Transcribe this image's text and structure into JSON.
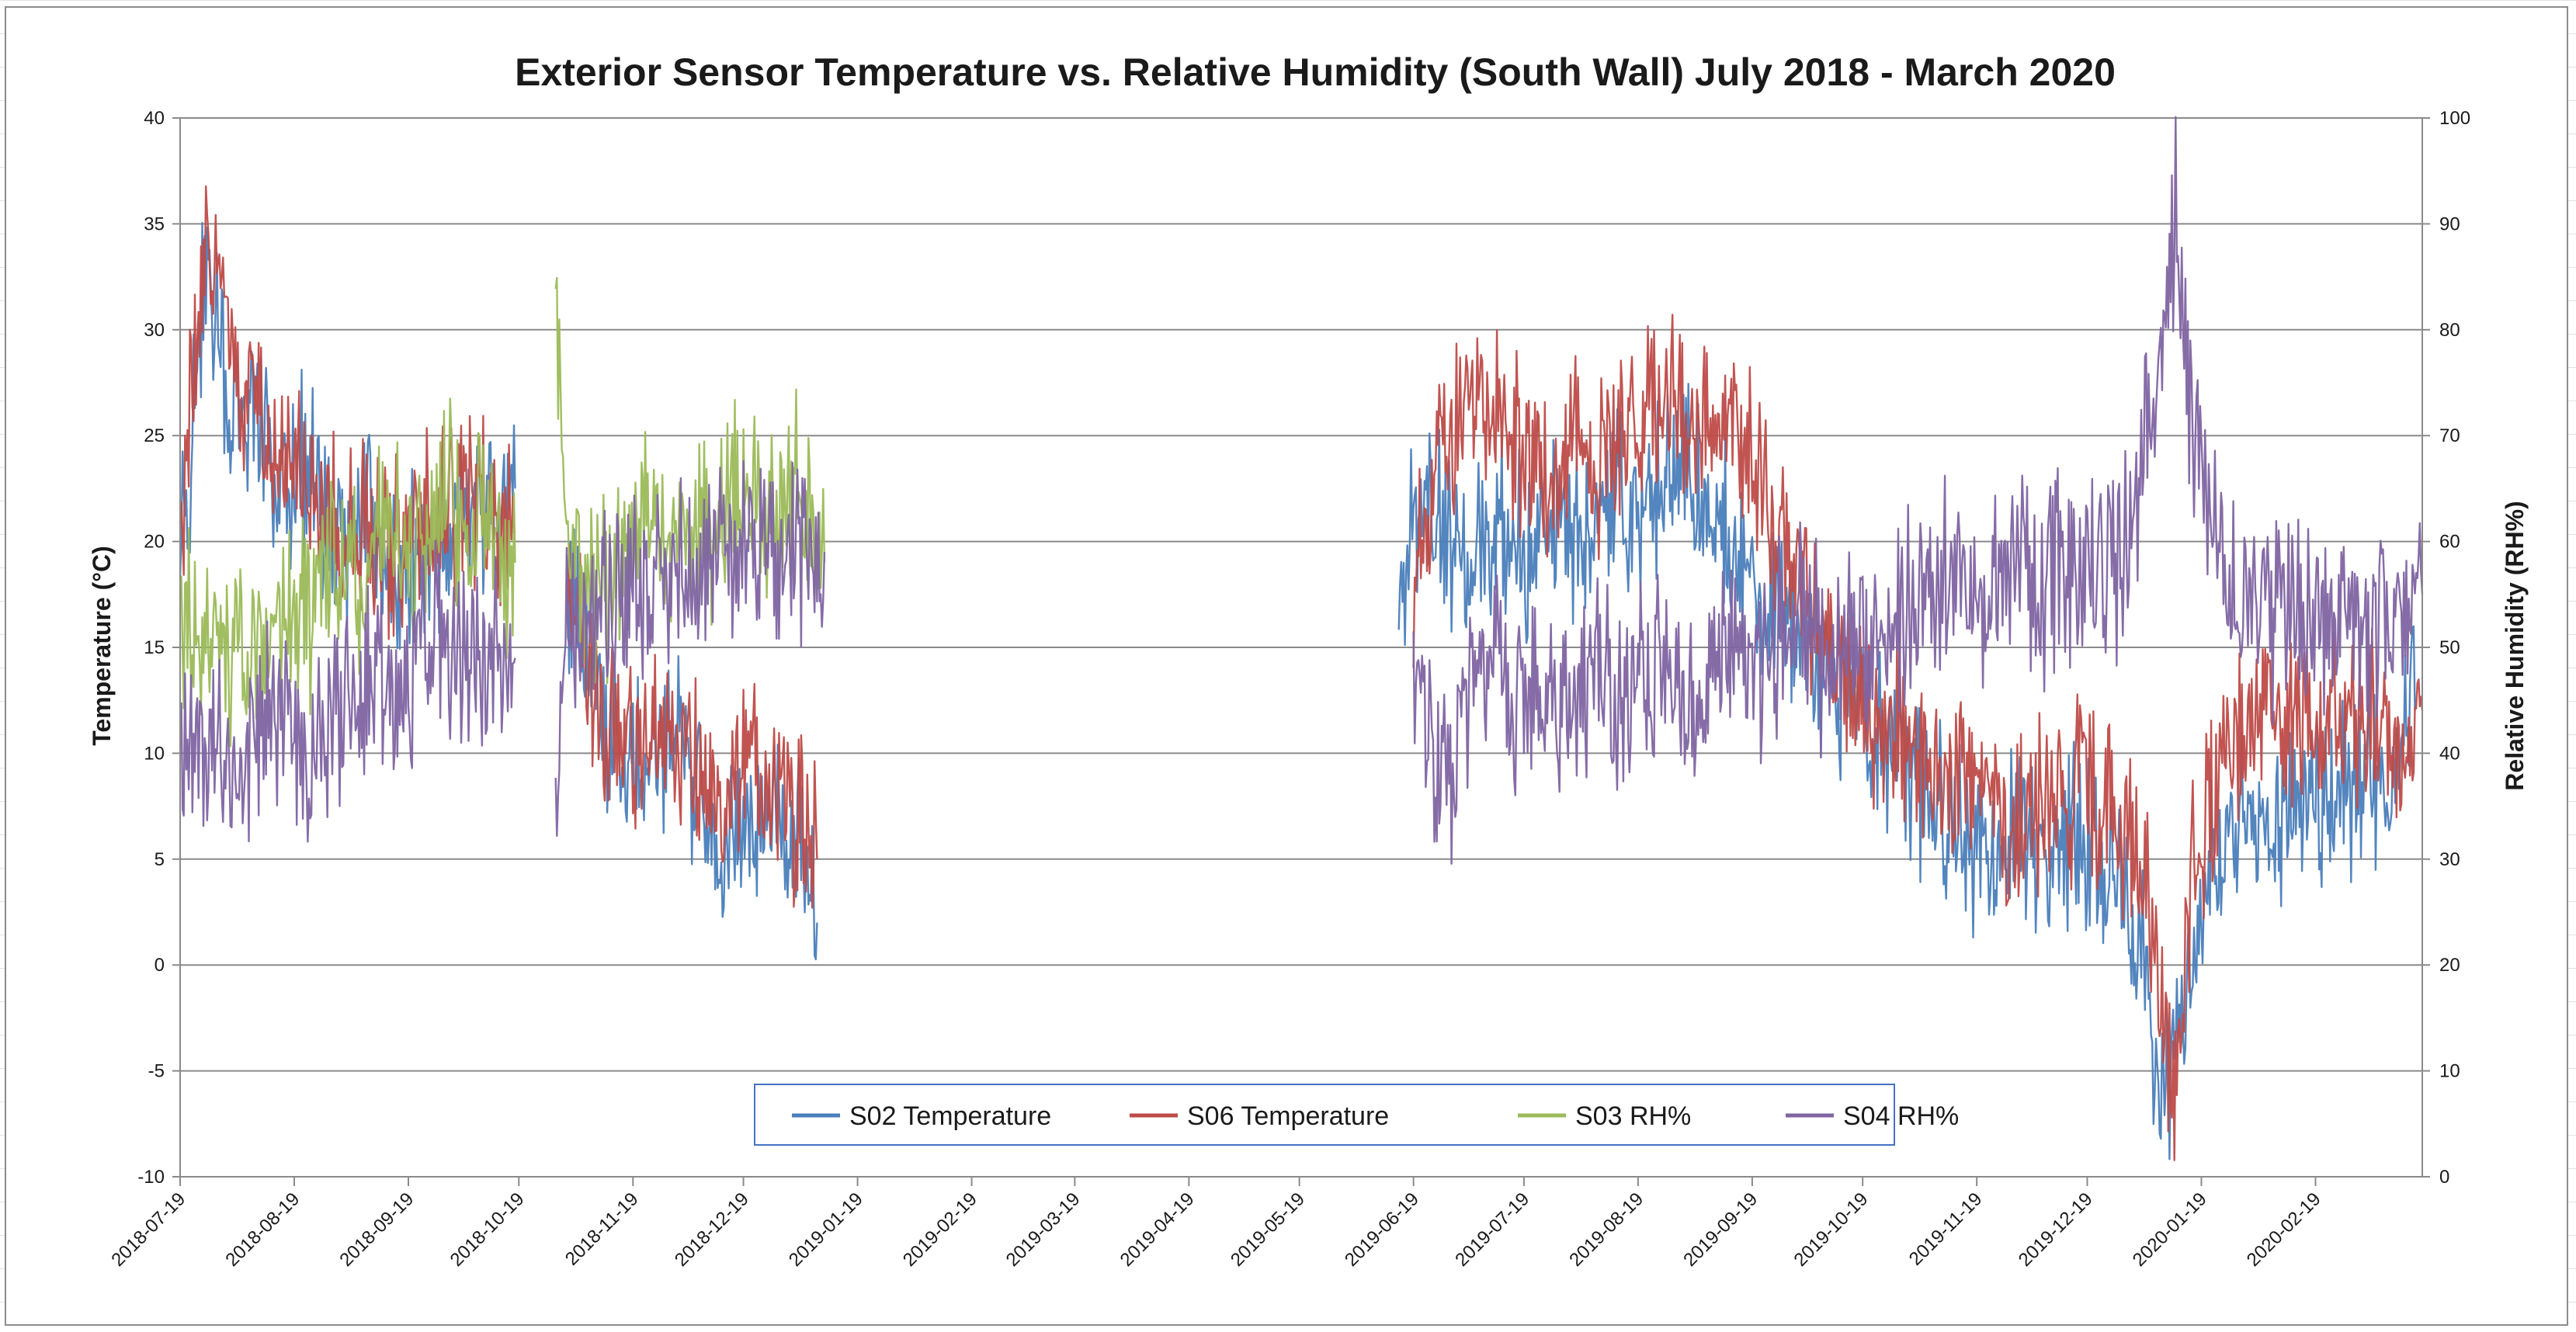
{
  "chart_data": {
    "type": "line",
    "title": "Exterior Sensor Temperature vs. Relative Humidity (South Wall) July 2018 - March 2020",
    "xlabel": "",
    "ylabel": "Temperature (°C)",
    "y2label": "Relative Humidity (RH%)",
    "ylim": [
      -10,
      40
    ],
    "y2lim": [
      0,
      100
    ],
    "yticks": [
      -10,
      -5,
      0,
      5,
      10,
      15,
      20,
      25,
      30,
      35,
      40
    ],
    "y2ticks": [
      0,
      10,
      20,
      30,
      40,
      50,
      60,
      70,
      80,
      90,
      100
    ],
    "xlim": [
      "2018-07-19",
      "2020-03-19"
    ],
    "xticks": [
      "2018-07-19",
      "2018-08-19",
      "2018-09-19",
      "2018-10-19",
      "2018-11-19",
      "2018-12-19",
      "2019-01-19",
      "2019-02-19",
      "2019-03-19",
      "2019-04-19",
      "2019-05-19",
      "2019-06-19",
      "2019-07-19",
      "2019-08-19",
      "2019-09-19",
      "2019-10-19",
      "2019-11-19",
      "2019-12-19",
      "2020-01-19",
      "2020-02-19"
    ],
    "grid": true,
    "legend_position": "bottom-center",
    "series": [
      {
        "name": "S02 Temperature",
        "axis": "left",
        "color": "#4a7ebb",
        "points": [
          [
            "2018-07-19",
            18
          ],
          [
            "2018-07-26",
            33
          ],
          [
            "2018-08-02",
            27
          ],
          [
            "2018-08-09",
            26
          ],
          [
            "2018-08-16",
            22
          ],
          [
            "2018-08-23",
            24
          ],
          [
            "2018-08-30",
            20
          ],
          [
            "2018-09-06",
            22
          ],
          [
            "2018-09-13",
            18
          ],
          [
            "2018-09-20",
            19
          ],
          [
            "2018-09-27",
            20
          ],
          [
            "2018-10-04",
            22
          ],
          [
            "2018-10-11",
            21
          ],
          [
            "2018-10-18",
            22.5
          ],
          null,
          [
            "2018-11-01",
            18
          ],
          [
            "2018-11-08",
            14
          ],
          [
            "2018-11-15",
            10
          ],
          [
            "2018-11-22",
            9
          ],
          [
            "2018-11-29",
            11
          ],
          [
            "2018-12-06",
            8
          ],
          [
            "2018-12-13",
            5
          ],
          [
            "2018-12-20",
            7
          ],
          [
            "2018-12-27",
            8
          ],
          [
            "2019-01-03",
            6
          ],
          [
            "2019-01-08",
            2
          ],
          null,
          [
            "2019-06-15",
            18
          ],
          [
            "2019-06-22",
            22
          ],
          [
            "2019-06-29",
            20
          ],
          [
            "2019-07-06",
            19
          ],
          [
            "2019-07-13",
            21
          ],
          [
            "2019-07-20",
            19
          ],
          [
            "2019-07-27",
            21
          ],
          [
            "2019-08-03",
            20
          ],
          [
            "2019-08-10",
            22
          ],
          [
            "2019-08-17",
            21
          ],
          [
            "2019-08-24",
            23
          ],
          [
            "2019-08-31",
            24
          ],
          [
            "2019-09-07",
            22
          ],
          [
            "2019-09-14",
            20
          ],
          [
            "2019-09-21",
            17
          ],
          [
            "2019-09-28",
            16
          ],
          [
            "2019-10-05",
            14
          ],
          [
            "2019-10-12",
            13
          ],
          [
            "2019-10-19",
            11
          ],
          [
            "2019-10-26",
            10
          ],
          [
            "2019-11-02",
            9
          ],
          [
            "2019-11-09",
            7
          ],
          [
            "2019-11-16",
            6
          ],
          [
            "2019-11-23",
            5
          ],
          [
            "2019-11-30",
            6
          ],
          [
            "2019-12-07",
            5
          ],
          [
            "2019-12-14",
            6
          ],
          [
            "2019-12-21",
            5
          ],
          [
            "2019-12-28",
            3
          ],
          [
            "2020-01-04",
            0
          ],
          [
            "2020-01-08",
            -7
          ],
          [
            "2020-01-14",
            -2
          ],
          [
            "2020-01-21",
            4
          ],
          [
            "2020-01-28",
            7
          ],
          [
            "2020-02-04",
            6
          ],
          [
            "2020-02-11",
            7
          ],
          [
            "2020-02-18",
            8
          ],
          [
            "2020-02-25",
            9
          ],
          [
            "2020-03-03",
            8
          ],
          [
            "2020-03-10",
            9
          ],
          [
            "2020-03-17",
            12
          ]
        ]
      },
      {
        "name": "S06 Temperature",
        "axis": "left",
        "color": "#be4b48",
        "points": [
          [
            "2018-07-19",
            20
          ],
          [
            "2018-07-26",
            35
          ],
          [
            "2018-08-02",
            29
          ],
          [
            "2018-08-09",
            26
          ],
          [
            "2018-08-16",
            24
          ],
          [
            "2018-08-23",
            23
          ],
          [
            "2018-08-30",
            21
          ],
          [
            "2018-09-06",
            21
          ],
          [
            "2018-09-13",
            19
          ],
          [
            "2018-09-20",
            20
          ],
          [
            "2018-09-27",
            21
          ],
          [
            "2018-10-04",
            22
          ],
          [
            "2018-10-11",
            21
          ],
          [
            "2018-10-18",
            20.5
          ],
          null,
          [
            "2018-11-01",
            19
          ],
          [
            "2018-11-08",
            12
          ],
          [
            "2018-11-15",
            11
          ],
          [
            "2018-11-22",
            10
          ],
          [
            "2018-11-29",
            12
          ],
          [
            "2018-12-06",
            9
          ],
          [
            "2018-12-13",
            7
          ],
          [
            "2018-12-20",
            10
          ],
          [
            "2018-12-27",
            9
          ],
          [
            "2019-01-03",
            7
          ],
          [
            "2019-01-08",
            5
          ],
          null,
          [
            "2019-06-19",
            17
          ],
          [
            "2019-06-26",
            24
          ],
          [
            "2019-07-03",
            26
          ],
          [
            "2019-07-10",
            27
          ],
          [
            "2019-07-17",
            25
          ],
          [
            "2019-07-24",
            23
          ],
          [
            "2019-07-31",
            25
          ],
          [
            "2019-08-07",
            24
          ],
          [
            "2019-08-14",
            25
          ],
          [
            "2019-08-21",
            26
          ],
          [
            "2019-08-28",
            27
          ],
          [
            "2019-09-04",
            25
          ],
          [
            "2019-09-11",
            26
          ],
          [
            "2019-09-18",
            24
          ],
          [
            "2019-09-25",
            21
          ],
          [
            "2019-10-02",
            18
          ],
          [
            "2019-10-09",
            15
          ],
          [
            "2019-10-16",
            13
          ],
          [
            "2019-10-23",
            12
          ],
          [
            "2019-10-30",
            11
          ],
          [
            "2019-11-06",
            10
          ],
          [
            "2019-11-13",
            9
          ],
          [
            "2019-11-20",
            8
          ],
          [
            "2019-11-27",
            7
          ],
          [
            "2019-12-04",
            7
          ],
          [
            "2019-12-11",
            8
          ],
          [
            "2019-12-18",
            9
          ],
          [
            "2019-12-25",
            7
          ],
          [
            "2020-01-01",
            5
          ],
          [
            "2020-01-07",
            0
          ],
          [
            "2020-01-12",
            -6
          ],
          [
            "2020-01-17",
            5
          ],
          [
            "2020-01-24",
            10
          ],
          [
            "2020-01-31",
            11
          ],
          [
            "2020-02-07",
            12
          ],
          [
            "2020-02-14",
            11
          ],
          [
            "2020-02-21",
            12
          ],
          [
            "2020-02-28",
            11
          ],
          [
            "2020-03-06",
            12
          ],
          [
            "2020-03-13",
            10
          ],
          [
            "2020-03-19",
            12
          ]
        ]
      },
      {
        "name": "S03 RH%",
        "axis": "right",
        "color": "#9bbb59",
        "points": [
          [
            "2018-07-19",
            55
          ],
          [
            "2018-07-26",
            52
          ],
          [
            "2018-08-02",
            48
          ],
          [
            "2018-08-09",
            50
          ],
          [
            "2018-08-16",
            55
          ],
          [
            "2018-08-23",
            52
          ],
          [
            "2018-08-30",
            60
          ],
          [
            "2018-09-06",
            55
          ],
          [
            "2018-09-13",
            62
          ],
          [
            "2018-09-20",
            58
          ],
          [
            "2018-09-27",
            63
          ],
          [
            "2018-10-04",
            64
          ],
          [
            "2018-10-11",
            60
          ],
          [
            "2018-10-18",
            58
          ],
          null,
          [
            "2018-10-29",
            78
          ],
          [
            "2018-11-02",
            60
          ],
          [
            "2018-11-09",
            55
          ],
          [
            "2018-11-16",
            58
          ],
          [
            "2018-11-23",
            63
          ],
          [
            "2018-11-30",
            60
          ],
          [
            "2018-12-07",
            62
          ],
          [
            "2018-12-14",
            63
          ],
          [
            "2018-12-21",
            64
          ],
          [
            "2018-12-28",
            62
          ],
          [
            "2019-01-04",
            65
          ],
          [
            "2019-01-10",
            58
          ]
        ]
      },
      {
        "name": "S04 RH%",
        "axis": "right",
        "color": "#8064a2",
        "points": [
          [
            "2018-07-19",
            42
          ],
          [
            "2018-07-26",
            40
          ],
          [
            "2018-08-02",
            38
          ],
          [
            "2018-08-09",
            42
          ],
          [
            "2018-08-16",
            43
          ],
          [
            "2018-08-23",
            40
          ],
          [
            "2018-08-30",
            44
          ],
          [
            "2018-09-06",
            45
          ],
          [
            "2018-09-13",
            47
          ],
          [
            "2018-09-20",
            48
          ],
          [
            "2018-09-27",
            50
          ],
          [
            "2018-10-04",
            48
          ],
          [
            "2018-10-11",
            50
          ],
          [
            "2018-10-18",
            49
          ],
          null,
          [
            "2018-10-29",
            40
          ],
          [
            "2018-11-02",
            52
          ],
          [
            "2018-11-09",
            54
          ],
          [
            "2018-11-16",
            55
          ],
          [
            "2018-11-23",
            56
          ],
          [
            "2018-11-30",
            58
          ],
          [
            "2018-12-07",
            57
          ],
          [
            "2018-12-14",
            60
          ],
          [
            "2018-12-21",
            59
          ],
          [
            "2018-12-28",
            58
          ],
          [
            "2019-01-04",
            60
          ],
          [
            "2019-01-10",
            59
          ],
          null,
          [
            "2019-06-19",
            45
          ],
          [
            "2019-06-26",
            38
          ],
          [
            "2019-07-03",
            42
          ],
          [
            "2019-07-10",
            50
          ],
          [
            "2019-07-17",
            43
          ],
          [
            "2019-07-24",
            46
          ],
          [
            "2019-07-31",
            44
          ],
          [
            "2019-08-07",
            48
          ],
          [
            "2019-08-14",
            44
          ],
          [
            "2019-08-21",
            49
          ],
          [
            "2019-08-28",
            47
          ],
          [
            "2019-09-04",
            45
          ],
          [
            "2019-09-11",
            50
          ],
          [
            "2019-09-18",
            48
          ],
          [
            "2019-09-25",
            50
          ],
          [
            "2019-10-02",
            52
          ],
          [
            "2019-10-09",
            50
          ],
          [
            "2019-10-16",
            52
          ],
          [
            "2019-10-23",
            50
          ],
          [
            "2019-10-30",
            54
          ],
          [
            "2019-11-06",
            55
          ],
          [
            "2019-11-13",
            56
          ],
          [
            "2019-11-20",
            55
          ],
          [
            "2019-11-27",
            57
          ],
          [
            "2019-12-04",
            56
          ],
          [
            "2019-12-11",
            57
          ],
          [
            "2019-12-18",
            56
          ],
          [
            "2019-12-25",
            58
          ],
          [
            "2020-01-01",
            62
          ],
          [
            "2020-01-08",
            78
          ],
          [
            "2020-01-12",
            90
          ],
          [
            "2020-01-17",
            70
          ],
          [
            "2020-01-24",
            58
          ],
          [
            "2020-01-31",
            54
          ],
          [
            "2020-02-07",
            53
          ],
          [
            "2020-02-14",
            52
          ],
          [
            "2020-02-21",
            53
          ],
          [
            "2020-02-28",
            54
          ],
          [
            "2020-03-06",
            52
          ],
          [
            "2020-03-13",
            53
          ],
          [
            "2020-03-19",
            55
          ]
        ]
      }
    ]
  }
}
